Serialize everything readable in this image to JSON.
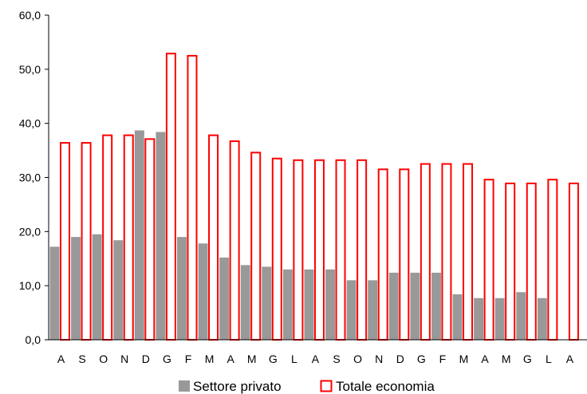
{
  "chart_data": {
    "type": "bar",
    "categories": [
      "A",
      "S",
      "O",
      "N",
      "D",
      "G",
      "F",
      "M",
      "A",
      "M",
      "G",
      "L",
      "A",
      "S",
      "O",
      "N",
      "D",
      "G",
      "F",
      "M",
      "A",
      "M",
      "G",
      "L",
      "A"
    ],
    "series": [
      {
        "name": "Settore privato",
        "color": "#999999",
        "values": [
          17.2,
          19.0,
          19.5,
          18.4,
          38.7,
          38.4,
          19.0,
          17.8,
          15.2,
          13.8,
          13.5,
          13.0,
          13.0,
          13.0,
          11.0,
          11.0,
          12.4,
          12.4,
          12.4,
          8.4,
          7.7,
          7.7,
          8.8,
          7.7,
          null
        ]
      },
      {
        "name": "Totale economia",
        "color": "#ff0000",
        "values": [
          36.4,
          36.4,
          37.8,
          37.8,
          37.1,
          52.9,
          52.5,
          37.8,
          36.7,
          34.6,
          33.5,
          33.2,
          33.2,
          33.2,
          33.2,
          31.5,
          31.5,
          32.5,
          32.5,
          32.5,
          29.6,
          28.9,
          28.9,
          29.6,
          28.9
        ]
      }
    ],
    "ylim": [
      0,
      60
    ],
    "yticks": [
      "0,0",
      "10,0",
      "20,0",
      "30,0",
      "40,0",
      "50,0",
      "60,0"
    ],
    "legend_position": "bottom",
    "grid": false
  }
}
